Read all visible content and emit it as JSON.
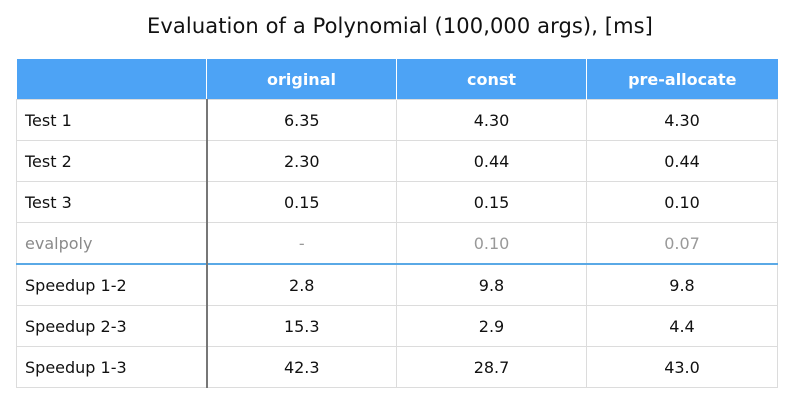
{
  "title": "Evaluation of a Polynomial (100,000 args), [ms]",
  "table": {
    "headers": [
      "",
      "original",
      "const",
      "pre-allocate"
    ],
    "rows": [
      {
        "label": "Test 1",
        "values": [
          "6.35",
          "4.30",
          "4.30"
        ],
        "muted": false
      },
      {
        "label": "Test 2",
        "values": [
          "2.30",
          "0.44",
          "0.44"
        ],
        "muted": false
      },
      {
        "label": "Test 3",
        "values": [
          "0.15",
          "0.15",
          "0.10"
        ],
        "muted": false
      },
      {
        "label": "evalpoly",
        "values": [
          "-",
          "0.10",
          "0.07"
        ],
        "muted": true
      },
      {
        "label": "Speedup 1-2",
        "values": [
          "2.8",
          "9.8",
          "9.8"
        ],
        "muted": false
      },
      {
        "label": "Speedup 2-3",
        "values": [
          "15.3",
          "2.9",
          "4.4"
        ],
        "muted": false
      },
      {
        "label": "Speedup 1-3",
        "values": [
          "42.3",
          "28.7",
          "43.0"
        ],
        "muted": false
      }
    ]
  },
  "colors": {
    "header_bg": "#4da3f5",
    "header_text": "#ffffff",
    "muted_text": "#999999",
    "section_divider": "#5aa9e6"
  }
}
